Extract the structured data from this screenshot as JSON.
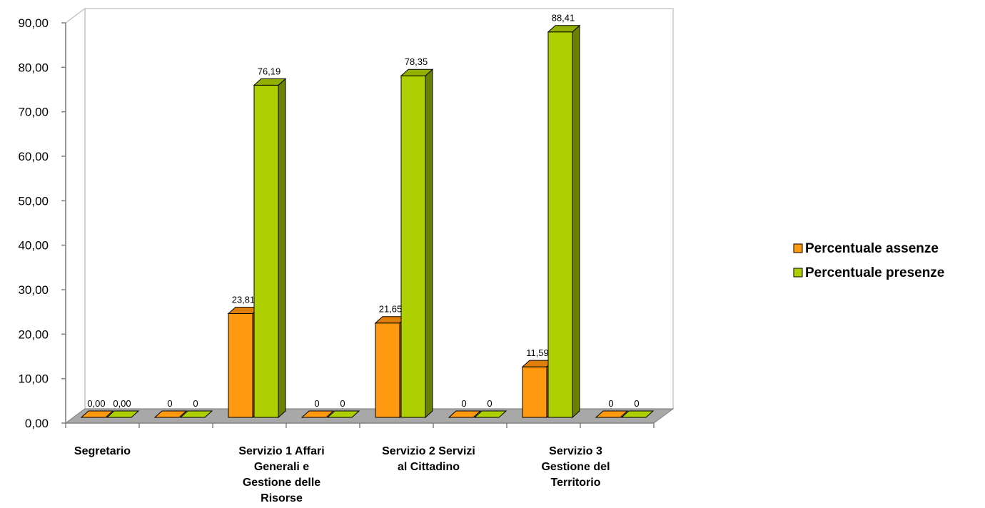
{
  "chart_data": {
    "type": "bar",
    "categories": [
      [
        "Segretario"
      ],
      [
        ""
      ],
      [
        "Servizio 1  Affari",
        "Generali  e",
        "Gestione delle",
        "Risorse"
      ],
      [
        ""
      ],
      [
        "Servizio 2 Servizi",
        "al Cittadino"
      ],
      [
        ""
      ],
      [
        "Servizio 3",
        "Gestione del",
        "Territorio"
      ],
      [
        ""
      ]
    ],
    "series": [
      {
        "name": "Percentuale assenze",
        "color": "#ff9910",
        "top_color": "#e07e0a",
        "side_color": "#b8650a",
        "values": [
          0,
          0,
          23.81,
          0,
          21.65,
          0,
          11.59,
          0
        ],
        "labels": [
          "0,00",
          "0",
          "23,81",
          "0",
          "21,65",
          "0",
          "11,59",
          "0"
        ]
      },
      {
        "name": "Percentuale presenze",
        "color": "#aed000",
        "top_color": "#92b000",
        "side_color": "#6b8200",
        "values": [
          0,
          0,
          76.19,
          0,
          78.35,
          0,
          88.41,
          0
        ],
        "labels": [
          "0,00",
          "0",
          "76,19",
          "0",
          "78,35",
          "0",
          "88,41",
          "0"
        ]
      }
    ],
    "ylim": [
      0,
      90
    ],
    "yticks": [
      "0,00",
      "10,00",
      "20,00",
      "30,00",
      "40,00",
      "50,00",
      "60,00",
      "70,00",
      "80,00",
      "90,00"
    ],
    "grid": false,
    "legend_position": "right"
  }
}
